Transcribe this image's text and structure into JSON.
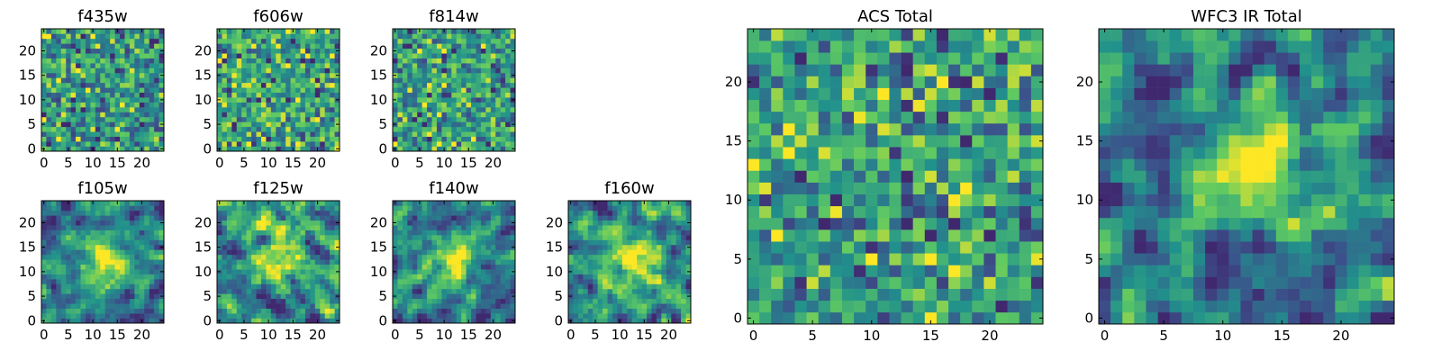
{
  "colormap": {
    "name": "viridis",
    "stops": [
      "#440154",
      "#3b528b",
      "#21918c",
      "#5ec962",
      "#fde725"
    ]
  },
  "chart_data": [
    {
      "type": "heatmap",
      "title": "f435w",
      "grid_size": 25,
      "x_ticks": [
        0,
        5,
        10,
        15,
        20
      ],
      "y_ticks": [
        0,
        5,
        10,
        15,
        20
      ],
      "pattern": "noise"
    },
    {
      "type": "heatmap",
      "title": "f606w",
      "grid_size": 25,
      "x_ticks": [
        0,
        5,
        10,
        15,
        20
      ],
      "y_ticks": [
        0,
        5,
        10,
        15,
        20
      ],
      "pattern": "noise"
    },
    {
      "type": "heatmap",
      "title": "f814w",
      "grid_size": 25,
      "x_ticks": [
        0,
        5,
        10,
        15,
        20
      ],
      "y_ticks": [
        0,
        5,
        10,
        15,
        20
      ],
      "pattern": "noise"
    },
    {
      "type": "heatmap",
      "title": "f105w",
      "grid_size": 25,
      "x_ticks": [
        0,
        5,
        10,
        15,
        20
      ],
      "y_ticks": [
        0,
        5,
        10,
        15,
        20
      ],
      "pattern": "source"
    },
    {
      "type": "heatmap",
      "title": "f125w",
      "grid_size": 25,
      "x_ticks": [
        0,
        5,
        10,
        15,
        20
      ],
      "y_ticks": [
        0,
        5,
        10,
        15,
        20
      ],
      "pattern": "source"
    },
    {
      "type": "heatmap",
      "title": "f140w",
      "grid_size": 25,
      "x_ticks": [
        0,
        5,
        10,
        15,
        20
      ],
      "y_ticks": [
        0,
        5,
        10,
        15,
        20
      ],
      "pattern": "source"
    },
    {
      "type": "heatmap",
      "title": "f160w",
      "grid_size": 25,
      "x_ticks": [
        0,
        5,
        10,
        15,
        20
      ],
      "y_ticks": [
        0,
        5,
        10,
        15,
        20
      ],
      "pattern": "source"
    },
    {
      "type": "heatmap",
      "title": "ACS Total",
      "grid_size": 25,
      "x_ticks": [
        0,
        5,
        10,
        15,
        20
      ],
      "y_ticks": [
        0,
        5,
        10,
        15,
        20
      ],
      "pattern": "noise"
    },
    {
      "type": "heatmap",
      "title": "WFC3 IR Total",
      "grid_size": 25,
      "x_ticks": [
        0,
        5,
        10,
        15,
        20
      ],
      "y_ticks": [
        0,
        5,
        10,
        15,
        20
      ],
      "pattern": "source"
    }
  ]
}
